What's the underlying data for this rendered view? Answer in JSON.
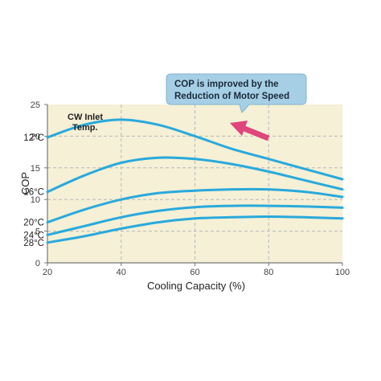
{
  "chart_data": {
    "type": "line",
    "xlabel": "Cooling Capacity (%)",
    "ylabel": "COP",
    "xlim": [
      20,
      100
    ],
    "ylim": [
      0,
      25
    ],
    "x_ticks": [
      20,
      40,
      60,
      80,
      100
    ],
    "y_ticks": [
      0,
      5,
      10,
      15,
      20,
      25
    ],
    "grid": true,
    "legend_title": [
      "CW Inlet",
      "Temp."
    ],
    "annotation": [
      "COP is improved by the",
      "Reduction of Motor Speed"
    ],
    "colors": {
      "line": "#29a9dc",
      "plot_bg": "#f5f0d6",
      "callout_bg": "#a6cfe6",
      "arrow": "#e0457b",
      "grid": "#b8b8b8"
    },
    "series": [
      {
        "name": "12°C",
        "x": [
          20,
          30,
          40,
          50,
          60,
          70,
          80,
          90,
          100
        ],
        "y": [
          19.8,
          21.8,
          22.6,
          21.8,
          20.0,
          18.0,
          16.4,
          14.8,
          13.2
        ]
      },
      {
        "name": "16°C",
        "x": [
          20,
          30,
          40,
          50,
          60,
          70,
          80,
          90,
          100
        ],
        "y": [
          11.2,
          13.8,
          15.8,
          16.6,
          16.4,
          15.6,
          14.4,
          13.0,
          11.6
        ]
      },
      {
        "name": "20°C",
        "x": [
          20,
          30,
          40,
          50,
          60,
          70,
          80,
          90,
          100
        ],
        "y": [
          6.4,
          8.4,
          10.0,
          11.0,
          11.4,
          11.6,
          11.6,
          11.2,
          10.4
        ]
      },
      {
        "name": "24°C",
        "x": [
          20,
          30,
          40,
          50,
          60,
          70,
          80,
          90,
          100
        ],
        "y": [
          4.4,
          5.8,
          7.2,
          8.2,
          8.8,
          9.0,
          9.0,
          8.9,
          8.7
        ]
      },
      {
        "name": "28°C",
        "x": [
          20,
          30,
          40,
          50,
          60,
          70,
          80,
          90,
          100
        ],
        "y": [
          3.2,
          4.2,
          5.4,
          6.4,
          7.0,
          7.2,
          7.3,
          7.2,
          7.0
        ]
      }
    ]
  }
}
